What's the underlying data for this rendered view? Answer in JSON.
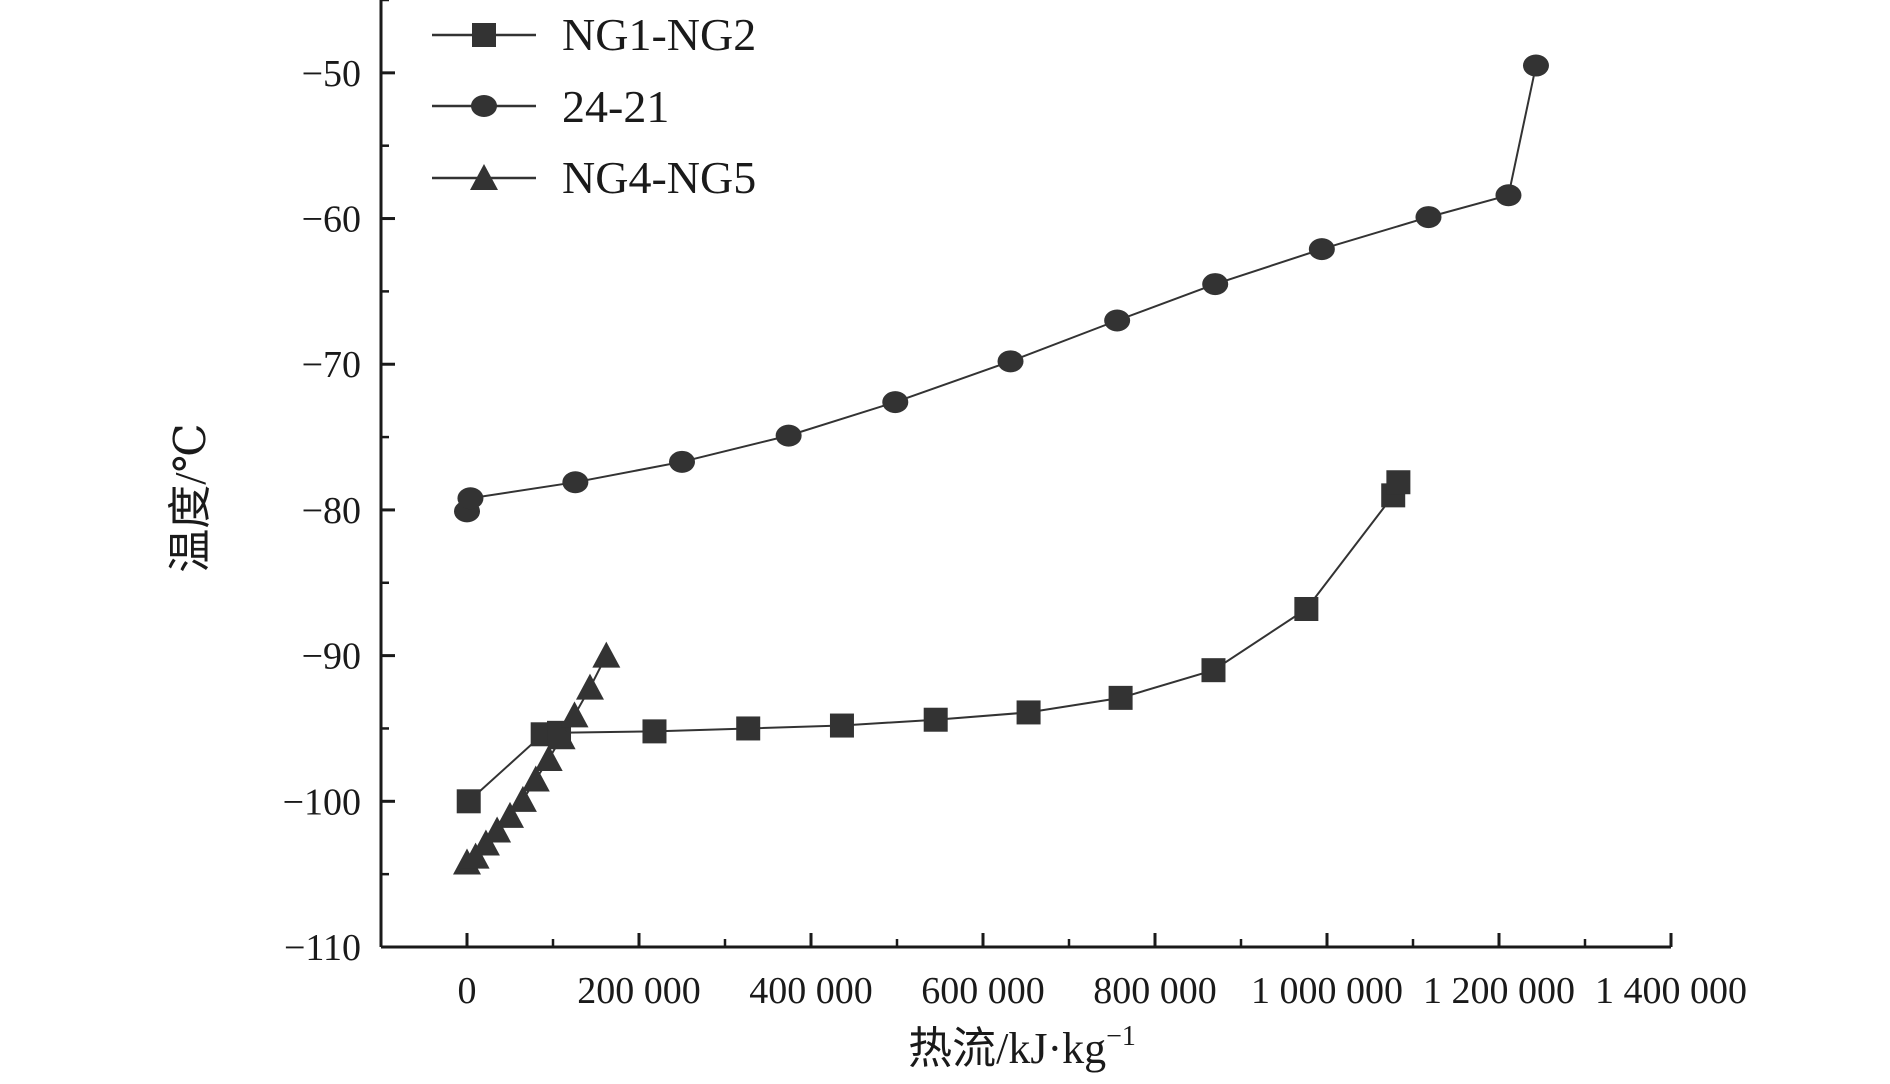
{
  "chart_data": {
    "type": "line",
    "xlabel": "热流/kJ·kg",
    "xlabel_superscript": "−1",
    "ylabel": "温度/℃",
    "xlim": [
      -100000,
      1400000
    ],
    "ylim": [
      -110,
      -45
    ],
    "x_ticks": [
      0,
      200000,
      400000,
      600000,
      800000,
      1000000,
      1200000,
      1400000
    ],
    "x_tick_labels": [
      "0",
      "200 000",
      "400 000",
      "600 000",
      "800 000",
      "1 000 000",
      "1 200 000",
      "1 400 000"
    ],
    "y_ticks": [
      -110,
      -100,
      -90,
      -80,
      -70,
      -60,
      -50
    ],
    "y_tick_labels": [
      "−110",
      "−100",
      "−90",
      "−80",
      "−70",
      "−60",
      "−50"
    ],
    "grid": false,
    "legend_position": "top-left",
    "series": [
      {
        "name": "NG1-NG2",
        "marker": "square",
        "color": "#333333",
        "x": [
          2000,
          88000,
          107000,
          218000,
          327000,
          436000,
          545000,
          653000,
          760000,
          868000,
          976000,
          1077000,
          1083000
        ],
        "y": [
          -100,
          -95.4,
          -95.3,
          -95.2,
          -95.0,
          -94.8,
          -94.4,
          -93.9,
          -92.9,
          -91.0,
          -86.8,
          -79.0,
          -78.1
        ]
      },
      {
        "name": "24-21",
        "marker": "circle",
        "color": "#333333",
        "x": [
          0,
          4000,
          126000,
          250000,
          374000,
          498000,
          632000,
          756000,
          870000,
          994000,
          1118000,
          1211000,
          1243000
        ],
        "y": [
          -80.1,
          -79.2,
          -78.1,
          -76.7,
          -74.9,
          -72.6,
          -69.8,
          -67.0,
          -64.5,
          -62.1,
          -59.9,
          -58.4,
          -49.5
        ]
      },
      {
        "name": "NG4-NG5",
        "marker": "triangle",
        "color": "#333333",
        "x": [
          0,
          10000,
          22000,
          35000,
          50000,
          65000,
          80000,
          95000,
          110000,
          125000,
          143000,
          162000
        ],
        "y": [
          -104.2,
          -103.8,
          -102.9,
          -102.0,
          -101.0,
          -99.9,
          -98.5,
          -97.1,
          -95.6,
          -94.1,
          -92.2,
          -90.0
        ]
      }
    ]
  }
}
